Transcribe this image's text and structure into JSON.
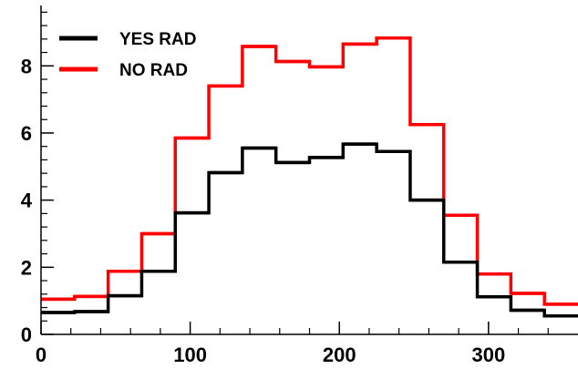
{
  "chart_data": {
    "type": "histogram",
    "title": "",
    "xlabel": "",
    "ylabel": "",
    "xlim": [
      0,
      360
    ],
    "ylim": [
      0,
      9.8
    ],
    "grid": false,
    "legend_position": "top-left",
    "x_ticks": [
      0,
      100,
      200,
      300
    ],
    "y_ticks": [
      0,
      2,
      4,
      6,
      8
    ],
    "bin_edges": [
      0,
      22.5,
      45,
      67.5,
      90,
      112.5,
      135,
      157.5,
      180,
      202.5,
      225,
      247.5,
      270,
      292.5,
      315,
      337.5,
      360
    ],
    "series": [
      {
        "name": "YES RAD",
        "color": "#000000",
        "values": [
          0.65,
          0.68,
          1.15,
          1.88,
          3.62,
          4.82,
          5.55,
          5.12,
          5.27,
          5.67,
          5.45,
          4.0,
          2.15,
          1.12,
          0.72,
          0.55
        ]
      },
      {
        "name": "NO RAD",
        "color": "#ff0000",
        "values": [
          1.05,
          1.13,
          1.88,
          3.0,
          5.85,
          7.4,
          8.58,
          8.13,
          7.97,
          8.65,
          8.83,
          6.25,
          3.55,
          1.8,
          1.22,
          0.9
        ]
      }
    ]
  }
}
